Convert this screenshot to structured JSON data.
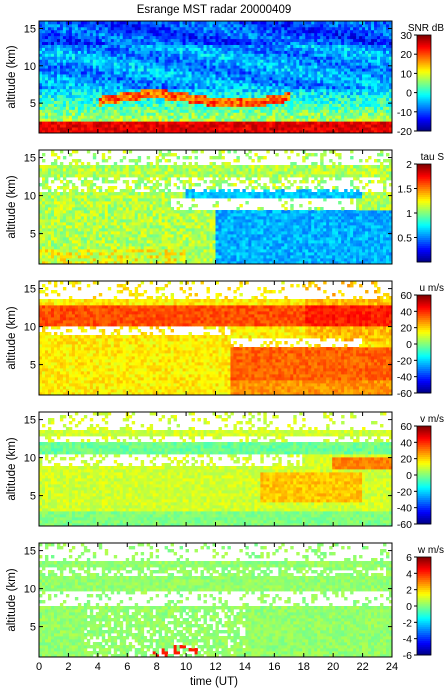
{
  "chart_data": {
    "type": "heatmap",
    "title": "Esrange MST radar 20000409",
    "xlabel": "time (UT)",
    "xlim": [
      0,
      24
    ],
    "xticks": [
      "0",
      "2",
      "4",
      "6",
      "8",
      "10",
      "12",
      "14",
      "16",
      "18",
      "20",
      "22",
      "24"
    ],
    "ylabel": "altitude (km)",
    "ylim": [
      1,
      16
    ],
    "yticks": [
      "5",
      "10",
      "15"
    ],
    "colormap": "jet",
    "panels": [
      {
        "quantity": "SNR",
        "unit_label": "SNR dB",
        "clim": [
          -20,
          30
        ],
        "cticks": [
          "30",
          "20",
          "10",
          "0",
          "-10",
          "-20"
        ]
      },
      {
        "quantity": "tau",
        "unit_label": "tau S",
        "clim": [
          0,
          2
        ],
        "cticks": [
          "2",
          "1.5",
          "1",
          "0.5"
        ]
      },
      {
        "quantity": "u",
        "unit_label": "u m/s",
        "clim": [
          -60,
          60
        ],
        "cticks": [
          "60",
          "40",
          "20",
          "0",
          "-20",
          "-40",
          "-60"
        ]
      },
      {
        "quantity": "v",
        "unit_label": "v m/s",
        "clim": [
          -60,
          60
        ],
        "cticks": [
          "60",
          "40",
          "20",
          "0",
          "-20",
          "-40",
          "-60"
        ]
      },
      {
        "quantity": "w",
        "unit_label": "w m/s",
        "clim": [
          -6,
          6
        ],
        "cticks": [
          "6",
          "4",
          "2",
          "0",
          "-2",
          "-4",
          "-6"
        ]
      }
    ]
  }
}
